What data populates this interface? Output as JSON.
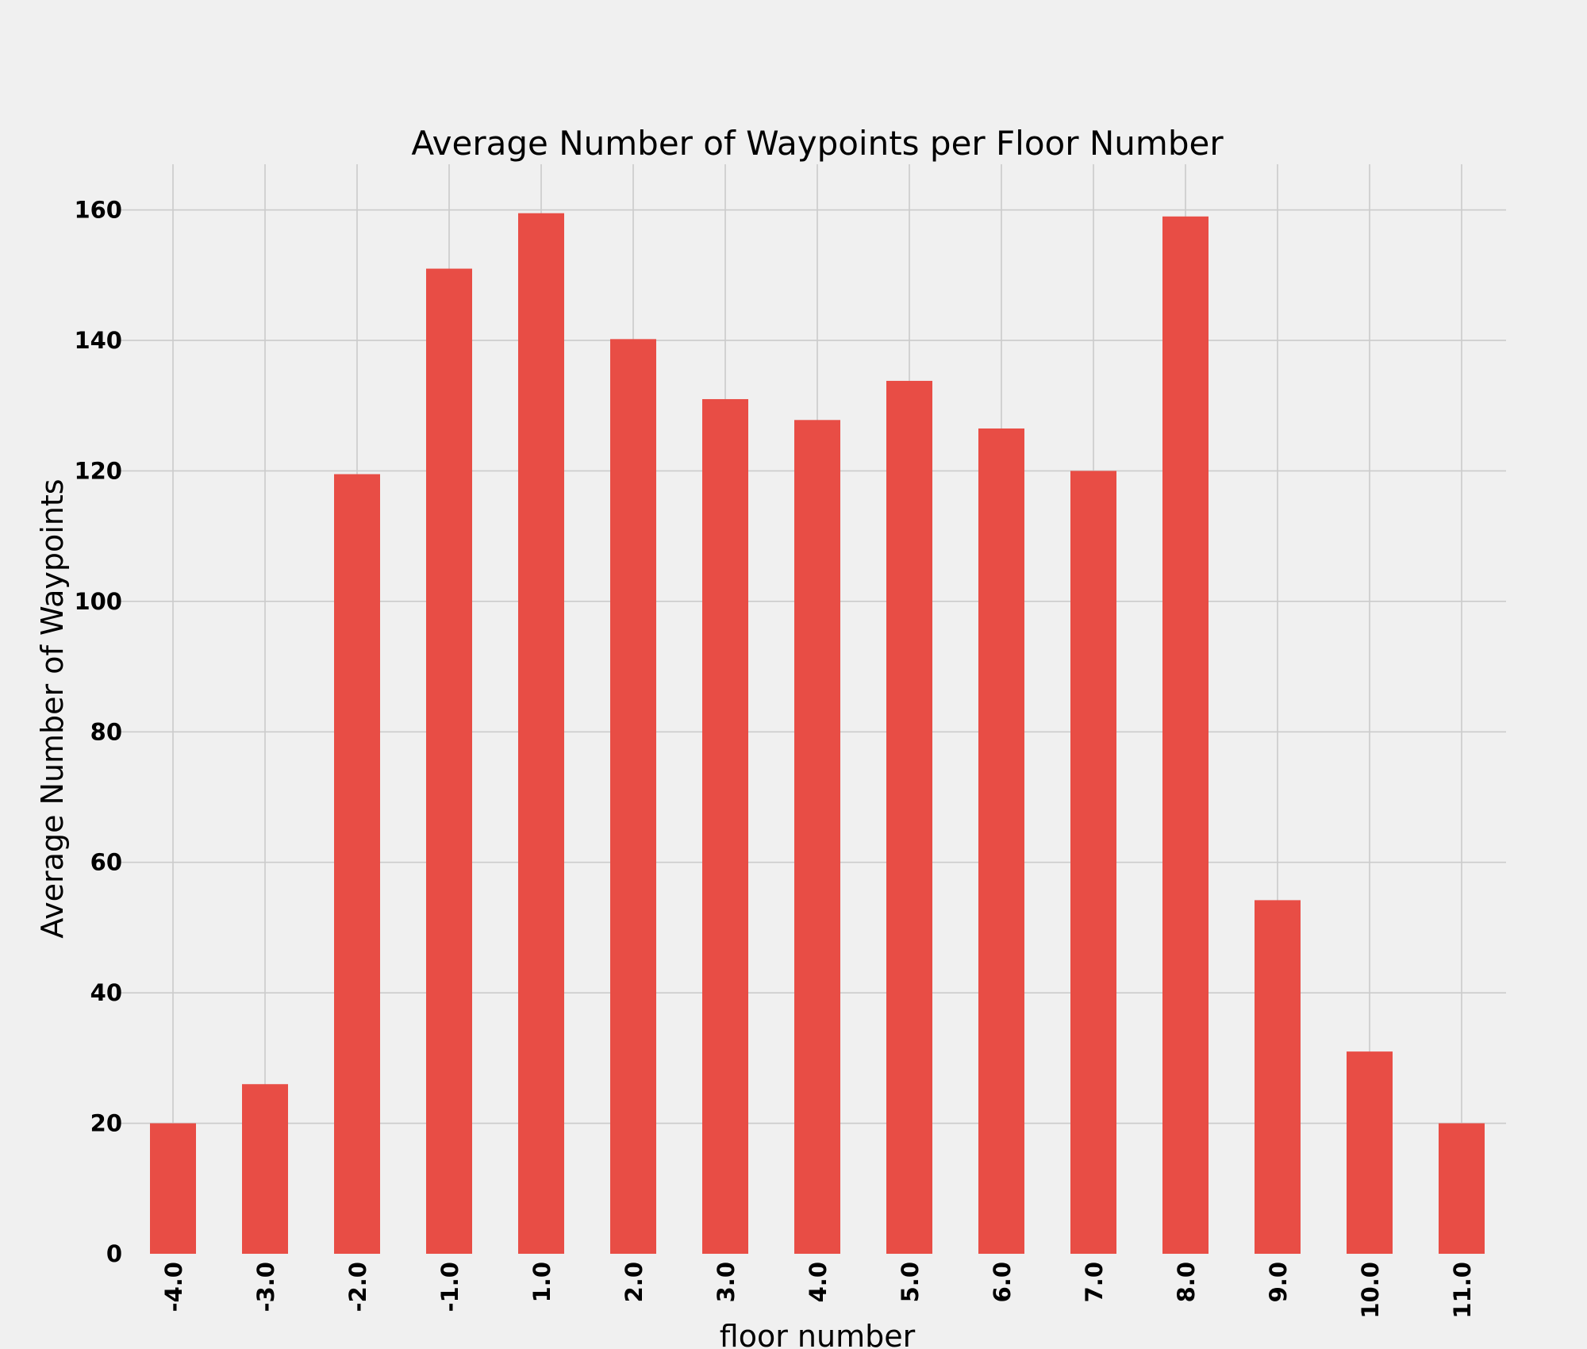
{
  "chart_data": {
    "type": "bar",
    "title": "Average Number of Waypoints per Floor Number",
    "xlabel": "floor number",
    "ylabel": "Average Number of Waypoints",
    "categories": [
      "-4.0",
      "-3.0",
      "-2.0",
      "-1.0",
      "1.0",
      "2.0",
      "3.0",
      "4.0",
      "5.0",
      "6.0",
      "7.0",
      "8.0",
      "9.0",
      "10.0",
      "11.0"
    ],
    "values": [
      20,
      26,
      119.5,
      151,
      159.5,
      140.2,
      131,
      127.8,
      133.8,
      126.5,
      120,
      159,
      54.2,
      31,
      20
    ],
    "ylim": [
      0,
      167
    ],
    "yticks": [
      0,
      20,
      40,
      60,
      80,
      100,
      120,
      140,
      160
    ],
    "grid": true,
    "legend": "none",
    "colors": {
      "bar": "#e84d45",
      "background": "#f0f0f0",
      "grid": "#cbcbcb"
    }
  }
}
